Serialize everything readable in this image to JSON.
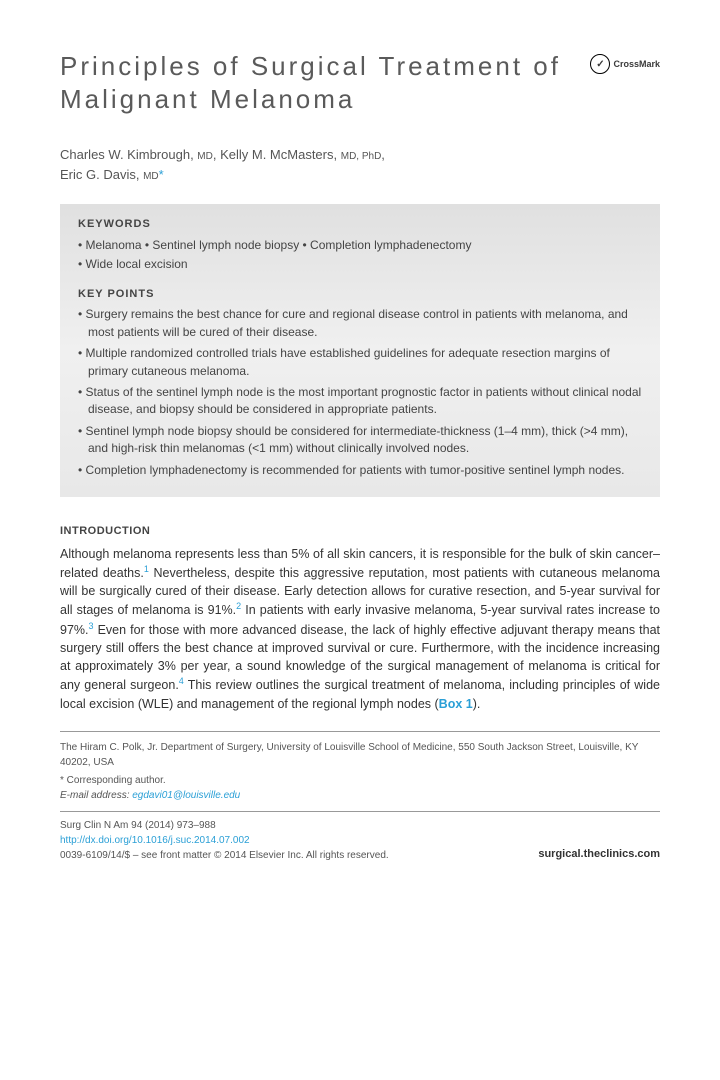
{
  "header": {
    "title": "Principles of Surgical Treatment of Malignant Melanoma",
    "crossmark_label": "CrossMark"
  },
  "authors": {
    "list": [
      {
        "name": "Charles W. Kimbrough",
        "degrees": "MD"
      },
      {
        "name": "Kelly M. McMasters",
        "degrees": "MD, PhD"
      },
      {
        "name": "Eric G. Davis",
        "degrees": "MD",
        "corresponding": true
      }
    ]
  },
  "keywords": {
    "heading": "KEYWORDS",
    "items": [
      "Melanoma",
      "Sentinel lymph node biopsy",
      "Completion lymphadenectomy",
      "Wide local excision"
    ]
  },
  "keypoints": {
    "heading": "KEY POINTS",
    "items": [
      "Surgery remains the best chance for cure and regional disease control in patients with melanoma, and most patients will be cured of their disease.",
      "Multiple randomized controlled trials have established guidelines for adequate resection margins of primary cutaneous melanoma.",
      "Status of the sentinel lymph node is the most important prognostic factor in patients without clinical nodal disease, and biopsy should be considered in appropriate patients.",
      "Sentinel lymph node biopsy should be considered for intermediate-thickness (1–4 mm), thick (>4 mm), and high-risk thin melanomas (<1 mm) without clinically involved nodes.",
      "Completion lymphadenectomy is recommended for patients with tumor-positive sentinel lymph nodes."
    ]
  },
  "intro": {
    "heading": "INTRODUCTION",
    "paragraph_parts": {
      "p1": "Although melanoma represents less than 5% of all skin cancers, it is responsible for the bulk of skin cancer–related deaths.",
      "ref1": "1",
      "p2": " Nevertheless, despite this aggressive reputation, most patients with cutaneous melanoma will be surgically cured of their disease. Early detection allows for curative resection, and 5-year survival for all stages of melanoma is 91%.",
      "ref2": "2",
      "p3": " In patients with early invasive melanoma, 5-year survival rates increase to 97%.",
      "ref3": "3",
      "p4": " Even for those with more advanced disease, the lack of highly effective adjuvant therapy means that surgery still offers the best chance at improved survival or cure. Furthermore, with the incidence increasing at approximately 3% per year, a sound knowledge of the surgical management of melanoma is critical for any general surgeon.",
      "ref4": "4",
      "p5": " This review outlines the surgical treatment of melanoma, including principles of wide local excision (WLE) and management of the regional lymph nodes (",
      "box_ref": "Box 1",
      "p6": ")."
    }
  },
  "footer": {
    "affiliation": "The Hiram C. Polk, Jr. Department of Surgery, University of Louisville School of Medicine, 550 South Jackson Street, Louisville, KY 40202, USA",
    "corresponding_label": "* Corresponding author.",
    "email_label": "E-mail address:",
    "email": "egdavi01@louisville.edu",
    "journal_line": "Surg Clin N Am 94 (2014) 973–988",
    "doi": "http://dx.doi.org/10.1016/j.suc.2014.07.002",
    "copyright": "0039-6109/14/$ – see front matter © 2014 Elsevier Inc. All rights reserved.",
    "clinics_url": "surgical.theclinics.com"
  },
  "colors": {
    "link": "#2a9fd6",
    "text": "#3a3a3a",
    "box_bg_top": "#e0e0e0",
    "box_bg_bottom": "#e8e8e8"
  }
}
